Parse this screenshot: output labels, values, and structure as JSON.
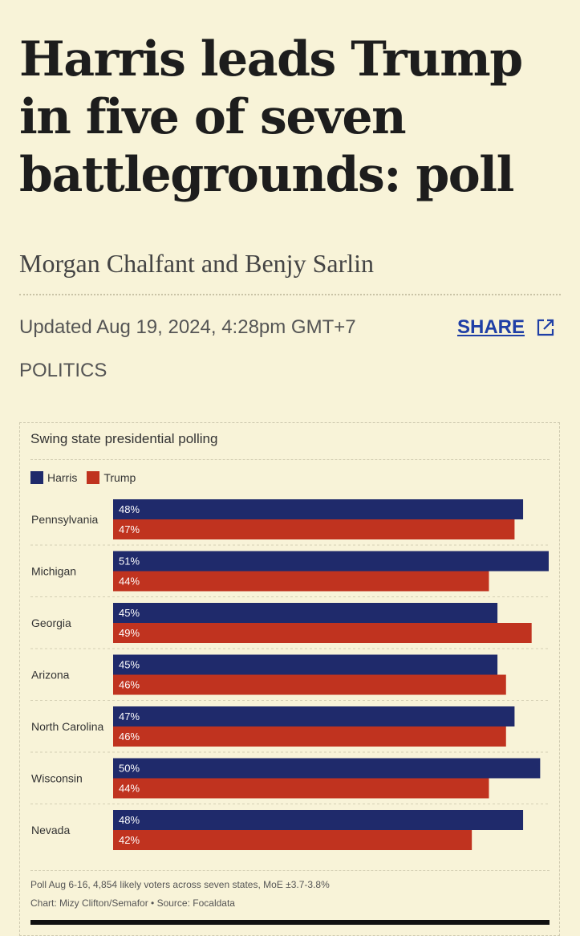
{
  "article": {
    "headline": "Harris leads Trump in five of seven battlegrounds: poll",
    "byline": "Morgan Chalfant and Benjy Sarlin",
    "updated": "Updated Aug 19, 2024, 4:28pm GMT+7",
    "share_label": "SHARE",
    "share_icon": "external-link-icon",
    "category": "POLITICS"
  },
  "colors": {
    "background": "#f8f3d8",
    "harris": "#1f2a6b",
    "trump": "#c0331f",
    "link": "#1f3fa6"
  },
  "chart_data": {
    "type": "bar",
    "orientation": "horizontal",
    "title": "Swing state presidential polling",
    "categories": [
      "Pennsylvania",
      "Michigan",
      "Georgia",
      "Arizona",
      "North Carolina",
      "Wisconsin",
      "Nevada"
    ],
    "series": [
      {
        "name": "Harris",
        "color": "#1f2a6b",
        "values": [
          48,
          51,
          45,
          45,
          47,
          50,
          48
        ]
      },
      {
        "name": "Trump",
        "color": "#c0331f",
        "values": [
          47,
          44,
          49,
          46,
          46,
          44,
          42
        ]
      }
    ],
    "value_suffix": "%",
    "xlim": [
      0,
      51
    ],
    "grid": false,
    "legend_position": "top-left",
    "footnote": "Poll Aug 6-16, 4,854 likely voters across seven states, MoE ±3.7-3.8%",
    "credit": "Chart: Mizy Clifton/Semafor • Source: Focaldata"
  }
}
